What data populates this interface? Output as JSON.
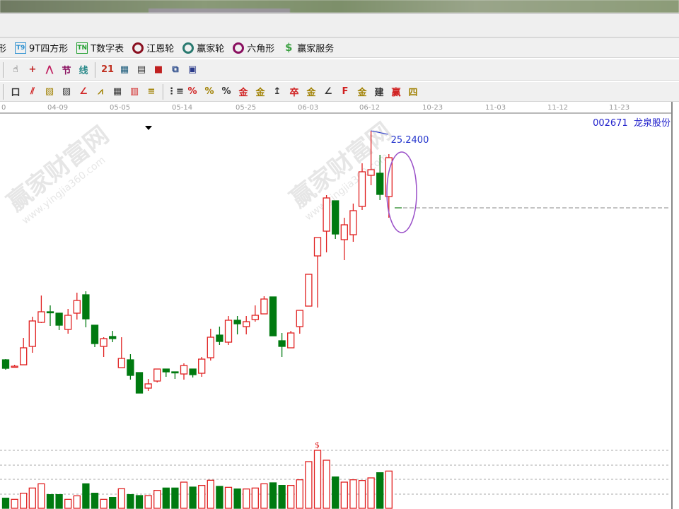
{
  "toolbar_row1": [
    {
      "icon": "partial-shape-icon",
      "label": "形"
    },
    {
      "icon": "t9-icon",
      "badge": "T9",
      "label": "9T四方形",
      "color": "#2a8fd0"
    },
    {
      "icon": "tn-icon",
      "badge": "TN",
      "label": "T数字表",
      "color": "#22a030"
    },
    {
      "icon": "gann-wheel-icon",
      "label": "江恩轮",
      "color": "#8a1020"
    },
    {
      "icon": "winner-wheel-icon",
      "label": "赢家轮",
      "color": "#2a7a70"
    },
    {
      "icon": "hexagon-icon",
      "label": "六角形",
      "color": "#8a1060"
    },
    {
      "icon": "dollar-icon",
      "label": "赢家服务",
      "color": "#3aa040"
    }
  ],
  "toolbar_row2": [
    {
      "icon": "hand-icon",
      "glyph": "☝"
    },
    {
      "icon": "crosshair-icon",
      "glyph": "+"
    },
    {
      "icon": "line-draw-icon",
      "glyph": "⋀"
    },
    {
      "icon": "section-icon",
      "glyph": "节"
    },
    {
      "icon": "line-icon",
      "glyph": "线"
    },
    {
      "icon": "calendar-icon",
      "glyph": "21"
    },
    {
      "icon": "calculator-icon",
      "glyph": "▦"
    },
    {
      "icon": "notebook-icon",
      "glyph": "▤"
    },
    {
      "icon": "save-icon",
      "glyph": "■"
    },
    {
      "icon": "network-icon",
      "glyph": "⧉"
    },
    {
      "icon": "printer-icon",
      "glyph": "▣"
    }
  ],
  "toolbar_row3": [
    {
      "icon": "box-icon",
      "glyph": "口"
    },
    {
      "icon": "fan-lines-icon",
      "glyph": "⫽"
    },
    {
      "icon": "gann-box-icon",
      "glyph": "▧"
    },
    {
      "icon": "gann-fan-icon",
      "glyph": "▨"
    },
    {
      "icon": "angle-icon",
      "glyph": "∠"
    },
    {
      "icon": "zigzag-icon",
      "glyph": "⩘"
    },
    {
      "icon": "grid-icon",
      "glyph": "▦"
    },
    {
      "icon": "grid2-icon",
      "glyph": "▥"
    },
    {
      "icon": "parallel-icon",
      "glyph": "≡"
    },
    {
      "icon": "fib-icon",
      "glyph": "⋮≡"
    },
    {
      "icon": "percent-fan-icon",
      "glyph": "%"
    },
    {
      "icon": "percent-icon",
      "glyph": "%"
    },
    {
      "icon": "percent-lines-icon",
      "glyph": "%"
    },
    {
      "icon": "gold-circle-icon",
      "glyph": "金"
    },
    {
      "icon": "gold-lines-icon",
      "glyph": "金"
    },
    {
      "icon": "arrow-tool-icon",
      "glyph": "↥"
    },
    {
      "icon": "wave-icon",
      "glyph": "卒"
    },
    {
      "icon": "gold-bar-icon",
      "glyph": "金"
    },
    {
      "icon": "angle-lines-icon",
      "glyph": "∠"
    },
    {
      "icon": "f-angle-icon",
      "glyph": "F"
    },
    {
      "icon": "gold-angle-icon",
      "glyph": "金"
    },
    {
      "icon": "jian-angle-icon",
      "glyph": "建"
    },
    {
      "icon": "ying-angle-icon",
      "glyph": "赢"
    },
    {
      "icon": "four-angle-icon",
      "glyph": "四"
    }
  ],
  "date_axis": [
    "0",
    "04-09",
    "05-05",
    "05-14",
    "05-25",
    "06-03",
    "06-12",
    "10-23",
    "11-03",
    "11-12",
    "11-23"
  ],
  "stock": {
    "code": "002671",
    "name": "龙泉股份"
  },
  "watermark": {
    "text": "赢家财富网",
    "url": "www.yingjia360.com"
  },
  "colors": {
    "up": "#e02020",
    "down": "#007a10",
    "annotation": "#2233cc",
    "ellipse": "#9a50c8"
  },
  "chart_data": {
    "type": "candlestick",
    "high_label": "25.2400",
    "volume_marker": "$",
    "volume_marker_index": 35,
    "ohlc": [
      [
        15.52,
        15.55,
        15.1,
        15.16
      ],
      [
        15.22,
        15.31,
        15.19,
        15.25
      ],
      [
        15.31,
        16.45,
        15.31,
        16.03
      ],
      [
        16.09,
        17.35,
        15.82,
        17.17
      ],
      [
        17.11,
        18.25,
        17.08,
        17.56
      ],
      [
        17.56,
        17.83,
        16.96,
        17.53
      ],
      [
        17.5,
        17.5,
        16.78,
        16.99
      ],
      [
        16.81,
        17.68,
        16.63,
        17.41
      ],
      [
        17.5,
        18.37,
        17.23,
        18.04
      ],
      [
        18.28,
        18.43,
        16.9,
        17.26
      ],
      [
        16.99,
        16.99,
        16.06,
        16.21
      ],
      [
        16.09,
        16.48,
        15.64,
        16.42
      ],
      [
        16.51,
        16.75,
        16.27,
        16.42
      ],
      [
        15.19,
        16.48,
        15.19,
        15.58
      ],
      [
        15.52,
        15.76,
        14.68,
        14.86
      ],
      [
        14.98,
        14.98,
        14.11,
        14.11
      ],
      [
        14.32,
        14.71,
        14.2,
        14.5
      ],
      [
        14.62,
        15.13,
        14.56,
        15.13
      ],
      [
        15.13,
        15.13,
        14.8,
        15.01
      ],
      [
        15.01,
        15.01,
        14.71,
        14.98
      ],
      [
        14.92,
        15.37,
        14.68,
        15.28
      ],
      [
        15.13,
        15.13,
        14.77,
        14.89
      ],
      [
        14.95,
        15.64,
        14.8,
        15.55
      ],
      [
        15.61,
        16.84,
        15.49,
        16.48
      ],
      [
        16.57,
        16.93,
        16.15,
        16.3
      ],
      [
        16.27,
        17.38,
        16.15,
        17.2
      ],
      [
        17.2,
        17.38,
        16.6,
        17.05
      ],
      [
        16.93,
        17.38,
        16.6,
        17.14
      ],
      [
        17.23,
        17.83,
        17.14,
        17.41
      ],
      [
        17.47,
        18.22,
        17.47,
        18.1
      ],
      [
        18.19,
        18.19,
        16.54,
        16.54
      ],
      [
        16.33,
        16.66,
        15.64,
        16.09
      ],
      [
        16.03,
        16.75,
        16.03,
        16.66
      ],
      [
        16.93,
        17.62,
        16.63,
        17.62
      ],
      [
        17.8,
        19.15,
        17.8,
        19.15
      ],
      [
        19.93,
        20.71,
        17.74,
        20.71
      ],
      [
        20.98,
        22.51,
        20.08,
        22.39
      ],
      [
        22.27,
        22.27,
        20.65,
        20.86
      ],
      [
        20.62,
        21.55,
        19.75,
        21.25
      ],
      [
        20.83,
        22.15,
        20.53,
        21.85
      ],
      [
        22.03,
        23.86,
        21.88,
        23.5
      ],
      [
        23.35,
        25.24,
        22.93,
        23.59
      ],
      [
        23.44,
        24.22,
        22.3,
        22.54
      ],
      [
        22.45,
        24.25,
        21.55,
        24.1
      ]
    ],
    "volume": [
      43,
      38,
      64,
      86,
      104,
      58,
      58,
      38,
      53,
      104,
      64,
      38,
      46,
      83,
      58,
      54,
      54,
      76,
      86,
      86,
      111,
      90,
      97,
      119,
      93,
      89,
      82,
      82,
      86,
      104,
      108,
      97,
      97,
      121,
      198,
      246,
      204,
      133,
      111,
      121,
      118,
      129,
      151,
      158
    ],
    "volume_up": [
      false,
      true,
      true,
      true,
      true,
      false,
      false,
      true,
      true,
      false,
      false,
      true,
      false,
      true,
      false,
      false,
      true,
      true,
      false,
      false,
      true,
      false,
      true,
      true,
      false,
      true,
      false,
      true,
      true,
      true,
      false,
      false,
      true,
      true,
      true,
      true,
      true,
      false,
      true,
      true,
      true,
      true,
      false,
      true
    ],
    "reference_line_price": 22.45
  }
}
